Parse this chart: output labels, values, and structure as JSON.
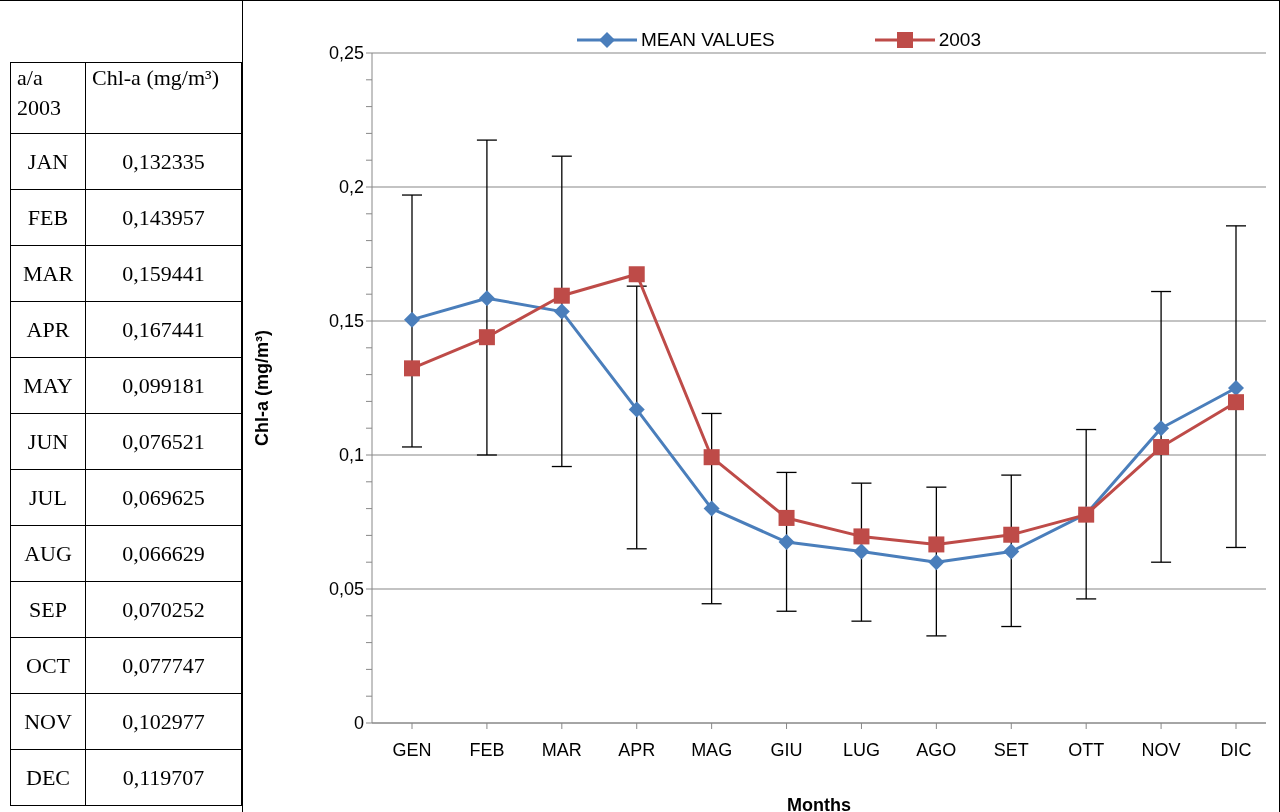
{
  "chart_data": [
    {
      "type": "other",
      "xlabel": "a/a 2003",
      "ylabel": "Chl-a (mg/m³)",
      "categories": [
        "JAN",
        "FEB",
        "MAR",
        "APR",
        "MAY",
        "JUN",
        "JUL",
        "AUG",
        "SEP",
        "OCT",
        "NOV",
        "DEC"
      ],
      "value_labels": [
        "0,132335",
        "0,143957",
        "0,159441",
        "0,167441",
        "0,099181",
        "0,076521",
        "0,069625",
        "0,066629",
        "0,070252",
        "0,077747",
        "0,102977",
        "0,119707"
      ]
    },
    {
      "type": "line",
      "xlabel": "Months",
      "ylabel": "Chl-a (mg/m³)",
      "categories": [
        "GEN",
        "FEB",
        "MAR",
        "APR",
        "MAG",
        "GIU",
        "LUG",
        "AGO",
        "SET",
        "OTT",
        "NOV",
        "DIC"
      ],
      "series": [
        {
          "name": "MEAN VALUES",
          "color": "#4a7ebb",
          "marker": "diamond",
          "values": [
            0.1505,
            0.1585,
            0.1535,
            0.117,
            0.08,
            0.0675,
            0.064,
            0.06,
            0.064,
            0.078,
            0.11,
            0.125
          ],
          "errors": [
            [
              0.103,
              0.197
            ],
            [
              0.1,
              0.2175
            ],
            [
              0.0957,
              0.2115
            ],
            [
              0.065,
              0.163
            ],
            [
              0.0445,
              0.1155
            ],
            [
              0.0417,
              0.0935
            ],
            [
              0.038,
              0.0895
            ],
            [
              0.0325,
              0.088
            ],
            [
              0.036,
              0.0925
            ],
            [
              0.0463,
              0.1095
            ],
            [
              0.06,
              0.161
            ],
            [
              0.0655,
              0.1855
            ]
          ]
        },
        {
          "name": "2003",
          "color": "#be4b48",
          "marker": "square",
          "values": [
            0.132335,
            0.143957,
            0.159441,
            0.167441,
            0.099181,
            0.076521,
            0.069625,
            0.066629,
            0.070252,
            0.077747,
            0.102977,
            0.119707
          ]
        }
      ],
      "ylim": [
        0,
        0.25
      ],
      "yticks": [
        {
          "value": 0,
          "label": "0"
        },
        {
          "value": 0.01,
          "label": null
        },
        {
          "value": 0.02,
          "label": null
        },
        {
          "value": 0.03,
          "label": null
        },
        {
          "value": 0.04,
          "label": null
        },
        {
          "value": 0.05,
          "label": "0,05"
        },
        {
          "value": 0.06,
          "label": null
        },
        {
          "value": 0.07,
          "label": null
        },
        {
          "value": 0.08,
          "label": null
        },
        {
          "value": 0.09,
          "label": null
        },
        {
          "value": 0.1,
          "label": "0,1"
        },
        {
          "value": 0.11,
          "label": null
        },
        {
          "value": 0.12,
          "label": null
        },
        {
          "value": 0.13,
          "label": null
        },
        {
          "value": 0.14,
          "label": null
        },
        {
          "value": 0.15,
          "label": "0,15"
        },
        {
          "value": 0.16,
          "label": null
        },
        {
          "value": 0.17,
          "label": null
        },
        {
          "value": 0.18,
          "label": null
        },
        {
          "value": 0.19,
          "label": null
        },
        {
          "value": 0.2,
          "label": "0,2"
        },
        {
          "value": 0.21,
          "label": null
        },
        {
          "value": 0.22,
          "label": null
        },
        {
          "value": 0.23,
          "label": null
        },
        {
          "value": 0.24,
          "label": null
        },
        {
          "value": 0.25,
          "label": "0,25"
        }
      ],
      "grid": "y",
      "legend": "top"
    }
  ]
}
